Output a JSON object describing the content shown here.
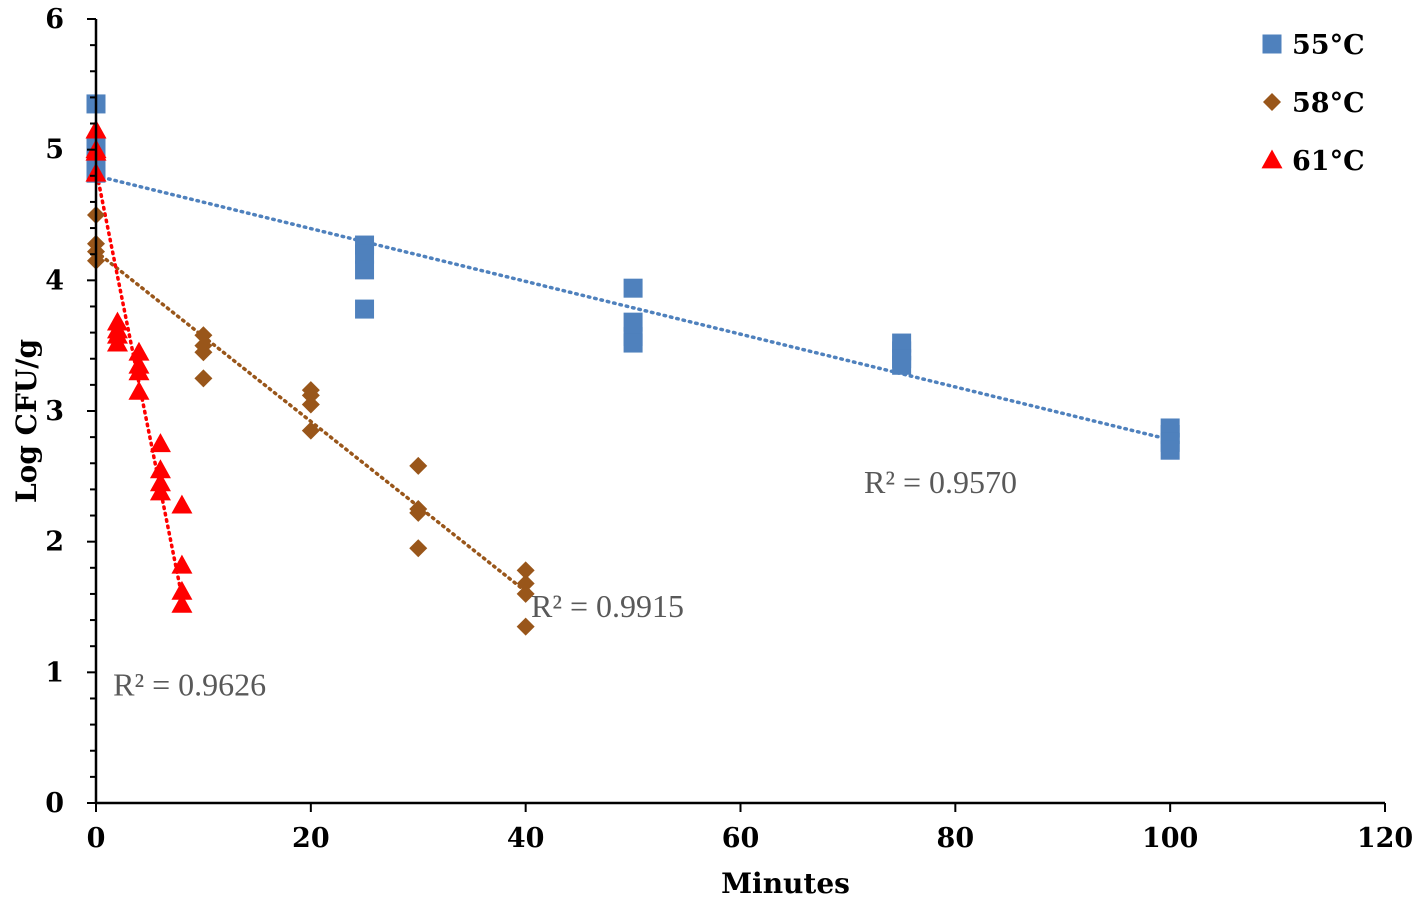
{
  "chart_data": {
    "type": "scatter",
    "title": "",
    "xlabel": "Minutes",
    "ylabel": "Log CFU/g",
    "xlim": [
      0,
      120
    ],
    "ylim": [
      0,
      6
    ],
    "x_ticks": [
      0,
      20,
      40,
      60,
      80,
      100,
      120
    ],
    "y_ticks": [
      0,
      1,
      2,
      3,
      4,
      5,
      6
    ],
    "x_tick_labels": [
      "0",
      "20",
      "40",
      "60",
      "80",
      "100",
      "120"
    ],
    "y_tick_labels": [
      "0",
      "1",
      "2",
      "3",
      "4",
      "5",
      "6"
    ],
    "legend_position": "top-right",
    "series": [
      {
        "name": "55°C",
        "legend_label": "55°C",
        "marker": "square",
        "color": "#4f81bd",
        "trend_color": "#4f81bd",
        "trendline": {
          "x": [
            0,
            100
          ],
          "y": [
            4.8,
            2.78
          ]
        },
        "r2_label": "R² = 0.9570",
        "r2_text_x": 71.5,
        "r2_text_y": 2.45,
        "points": [
          {
            "x": 0,
            "y": 5.35
          },
          {
            "x": 0,
            "y": 5.02
          },
          {
            "x": 0,
            "y": 4.88
          },
          {
            "x": 0,
            "y": 4.82
          },
          {
            "x": 25,
            "y": 4.27
          },
          {
            "x": 25,
            "y": 4.2
          },
          {
            "x": 25,
            "y": 4.08
          },
          {
            "x": 25,
            "y": 3.78
          },
          {
            "x": 50,
            "y": 3.94
          },
          {
            "x": 50,
            "y": 3.68
          },
          {
            "x": 50,
            "y": 3.57
          },
          {
            "x": 50,
            "y": 3.52
          },
          {
            "x": 75,
            "y": 3.52
          },
          {
            "x": 75,
            "y": 3.46
          },
          {
            "x": 75,
            "y": 3.4
          },
          {
            "x": 75,
            "y": 3.35
          },
          {
            "x": 100,
            "y": 2.87
          },
          {
            "x": 100,
            "y": 2.82
          },
          {
            "x": 100,
            "y": 2.76
          },
          {
            "x": 100,
            "y": 2.7
          }
        ]
      },
      {
        "name": "58°C",
        "legend_label": "58°C",
        "marker": "diamond",
        "color": "#99561a",
        "trend_color": "#99561a",
        "trendline": {
          "x": [
            0,
            40
          ],
          "y": [
            4.22,
            1.62
          ]
        },
        "r2_label": "R² = 0.9915",
        "r2_text_x": 40.5,
        "r2_text_y": 1.5,
        "points": [
          {
            "x": 0,
            "y": 4.5
          },
          {
            "x": 0,
            "y": 4.28
          },
          {
            "x": 0,
            "y": 4.22
          },
          {
            "x": 0,
            "y": 4.15
          },
          {
            "x": 10,
            "y": 3.58
          },
          {
            "x": 10,
            "y": 3.5
          },
          {
            "x": 10,
            "y": 3.45
          },
          {
            "x": 10,
            "y": 3.25
          },
          {
            "x": 20,
            "y": 3.16
          },
          {
            "x": 20,
            "y": 3.12
          },
          {
            "x": 20,
            "y": 3.05
          },
          {
            "x": 20,
            "y": 2.85
          },
          {
            "x": 30,
            "y": 2.58
          },
          {
            "x": 30,
            "y": 2.25
          },
          {
            "x": 30,
            "y": 2.22
          },
          {
            "x": 30,
            "y": 1.95
          },
          {
            "x": 40,
            "y": 1.78
          },
          {
            "x": 40,
            "y": 1.68
          },
          {
            "x": 40,
            "y": 1.6
          },
          {
            "x": 40,
            "y": 1.35
          }
        ]
      },
      {
        "name": "61°C",
        "legend_label": "61°C",
        "marker": "triangle",
        "color": "#ff0000",
        "trend_color": "#ff0000",
        "trendline": {
          "x": [
            0,
            8
          ],
          "y": [
            4.85,
            1.58
          ]
        },
        "r2_label": "R² = 0.9626",
        "r2_text_x": 1.6,
        "r2_text_y": 0.9,
        "points": [
          {
            "x": 0,
            "y": 5.15
          },
          {
            "x": 0,
            "y": 5.0
          },
          {
            "x": 0,
            "y": 4.98
          },
          {
            "x": 0,
            "y": 4.82
          },
          {
            "x": 2,
            "y": 3.68
          },
          {
            "x": 2,
            "y": 3.62
          },
          {
            "x": 2,
            "y": 3.58
          },
          {
            "x": 2,
            "y": 3.52
          },
          {
            "x": 4,
            "y": 3.45
          },
          {
            "x": 4,
            "y": 3.35
          },
          {
            "x": 4,
            "y": 3.3
          },
          {
            "x": 4,
            "y": 3.15
          },
          {
            "x": 6,
            "y": 2.75
          },
          {
            "x": 6,
            "y": 2.55
          },
          {
            "x": 6,
            "y": 2.45
          },
          {
            "x": 6,
            "y": 2.38
          },
          {
            "x": 8,
            "y": 2.28
          },
          {
            "x": 8,
            "y": 1.82
          },
          {
            "x": 8,
            "y": 1.62
          },
          {
            "x": 8,
            "y": 1.52
          }
        ]
      }
    ]
  }
}
